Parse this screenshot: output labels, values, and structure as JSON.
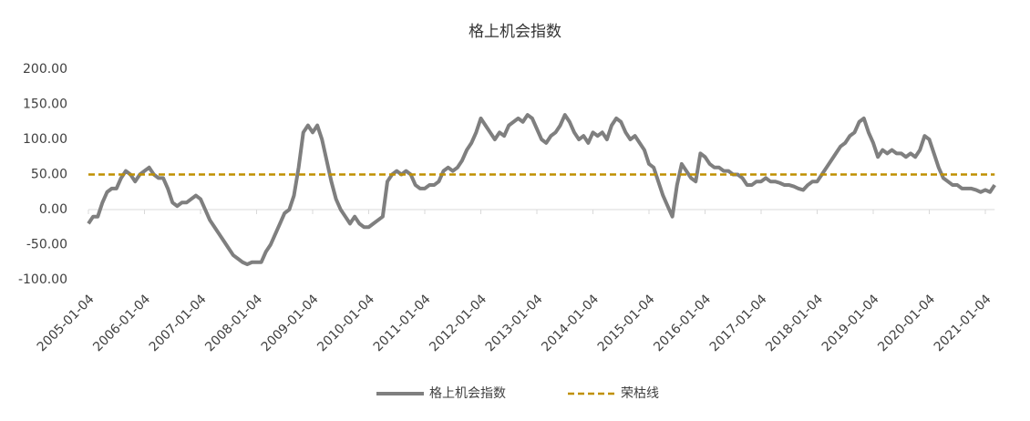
{
  "chart_data": {
    "type": "line",
    "title": "格上机会指数",
    "categories": [
      "2005-01-04",
      null,
      null,
      null,
      null,
      null,
      null,
      null,
      null,
      null,
      null,
      null,
      "2006-01-04",
      null,
      null,
      null,
      null,
      null,
      null,
      null,
      null,
      null,
      null,
      null,
      "2007-01-04",
      null,
      null,
      null,
      null,
      null,
      null,
      null,
      null,
      null,
      null,
      null,
      "2008-01-04",
      null,
      null,
      null,
      null,
      null,
      null,
      null,
      null,
      null,
      null,
      null,
      "2009-01-04",
      null,
      null,
      null,
      null,
      null,
      null,
      null,
      null,
      null,
      null,
      null,
      "2010-01-04",
      null,
      null,
      null,
      null,
      null,
      null,
      null,
      null,
      null,
      null,
      null,
      "2011-01-04",
      null,
      null,
      null,
      null,
      null,
      null,
      null,
      null,
      null,
      null,
      null,
      "2012-01-04",
      null,
      null,
      null,
      null,
      null,
      null,
      null,
      null,
      null,
      null,
      null,
      "2013-01-04",
      null,
      null,
      null,
      null,
      null,
      null,
      null,
      null,
      null,
      null,
      null,
      "2014-01-04",
      null,
      null,
      null,
      null,
      null,
      null,
      null,
      null,
      null,
      null,
      null,
      "2015-01-04",
      null,
      null,
      null,
      null,
      null,
      null,
      null,
      null,
      null,
      null,
      null,
      "2016-01-04",
      null,
      null,
      null,
      null,
      null,
      null,
      null,
      null,
      null,
      null,
      null,
      "2017-01-04",
      null,
      null,
      null,
      null,
      null,
      null,
      null,
      null,
      null,
      null,
      null,
      "2018-01-04",
      null,
      null,
      null,
      null,
      null,
      null,
      null,
      null,
      null,
      null,
      null,
      "2019-01-04",
      null,
      null,
      null,
      null,
      null,
      null,
      null,
      null,
      null,
      null,
      null,
      "2020-01-04",
      null,
      null,
      null,
      null,
      null,
      null,
      null,
      null,
      null,
      null,
      null,
      "2021-01-04",
      null,
      null
    ],
    "series": [
      {
        "name": "格上机会指数",
        "color": "#7f7f7f",
        "dashed": false,
        "values": [
          -20,
          -10,
          -10,
          10,
          25,
          30,
          30,
          45,
          55,
          50,
          40,
          50,
          55,
          60,
          50,
          45,
          45,
          30,
          10,
          5,
          10,
          10,
          15,
          20,
          15,
          0,
          -15,
          -25,
          -35,
          -45,
          -55,
          -65,
          -70,
          -75,
          -78,
          -75,
          -75,
          -75,
          -60,
          -50,
          -35,
          -20,
          -5,
          0,
          20,
          60,
          110,
          120,
          110,
          120,
          100,
          70,
          40,
          15,
          0,
          -10,
          -20,
          -10,
          -20,
          -25,
          -25,
          -20,
          -15,
          -10,
          40,
          50,
          55,
          50,
          55,
          50,
          35,
          30,
          30,
          35,
          35,
          40,
          55,
          60,
          55,
          60,
          70,
          85,
          95,
          110,
          130,
          120,
          110,
          100,
          110,
          105,
          120,
          125,
          130,
          125,
          135,
          130,
          115,
          100,
          95,
          105,
          110,
          120,
          135,
          125,
          110,
          100,
          105,
          95,
          110,
          105,
          110,
          100,
          120,
          130,
          125,
          110,
          100,
          105,
          95,
          85,
          65,
          60,
          40,
          20,
          5,
          -10,
          35,
          65,
          55,
          45,
          40,
          80,
          75,
          65,
          60,
          60,
          55,
          55,
          50,
          50,
          45,
          35,
          35,
          40,
          40,
          45,
          40,
          40,
          38,
          35,
          35,
          33,
          30,
          28,
          35,
          40,
          40,
          50,
          60,
          70,
          80,
          90,
          95,
          105,
          110,
          125,
          130,
          110,
          95,
          75,
          85,
          80,
          85,
          80,
          80,
          75,
          80,
          75,
          85,
          105,
          100,
          80,
          60,
          45,
          40,
          35,
          35,
          30,
          30,
          30,
          28,
          25,
          28,
          25,
          35
        ]
      },
      {
        "name": "荣枯线",
        "color": "#bf9000",
        "dashed": true,
        "values": [
          50,
          50,
          50,
          50,
          50,
          50,
          50,
          50,
          50,
          50,
          50,
          50,
          50,
          50,
          50,
          50,
          50,
          50,
          50,
          50,
          50,
          50,
          50,
          50,
          50,
          50,
          50,
          50,
          50,
          50,
          50,
          50,
          50,
          50,
          50,
          50,
          50,
          50,
          50,
          50,
          50,
          50,
          50,
          50,
          50,
          50,
          50,
          50,
          50,
          50,
          50,
          50,
          50,
          50,
          50,
          50,
          50,
          50,
          50,
          50,
          50,
          50,
          50,
          50,
          50,
          50,
          50,
          50,
          50,
          50,
          50,
          50,
          50,
          50,
          50,
          50,
          50,
          50,
          50,
          50,
          50,
          50,
          50,
          50,
          50,
          50,
          50,
          50,
          50,
          50,
          50,
          50,
          50,
          50,
          50,
          50,
          50,
          50,
          50,
          50,
          50,
          50,
          50,
          50,
          50,
          50,
          50,
          50,
          50,
          50,
          50,
          50,
          50,
          50,
          50,
          50,
          50,
          50,
          50,
          50,
          50,
          50,
          50,
          50,
          50,
          50,
          50,
          50,
          50,
          50,
          50,
          50,
          50,
          50,
          50,
          50,
          50,
          50,
          50,
          50,
          50,
          50,
          50,
          50,
          50,
          50,
          50,
          50,
          50,
          50,
          50,
          50,
          50,
          50,
          50,
          50,
          50,
          50,
          50,
          50,
          50,
          50,
          50,
          50,
          50,
          50,
          50,
          50,
          50,
          50,
          50,
          50,
          50,
          50,
          50,
          50,
          50,
          50,
          50,
          50,
          50,
          50,
          50,
          50,
          50,
          50,
          50,
          50,
          50,
          50,
          50,
          50,
          50,
          50,
          50
        ]
      }
    ],
    "ylim": [
      -100,
      200
    ],
    "yticks": [
      {
        "value": -100,
        "label": "-100.00"
      },
      {
        "value": -50,
        "label": "-50.00"
      },
      {
        "value": 0,
        "label": "0.00"
      },
      {
        "value": 50,
        "label": "50.00"
      },
      {
        "value": 100,
        "label": "100.00"
      },
      {
        "value": 150,
        "label": "150.00"
      },
      {
        "value": 200,
        "label": "200.00"
      }
    ],
    "grid": false,
    "legend": "bottom"
  }
}
